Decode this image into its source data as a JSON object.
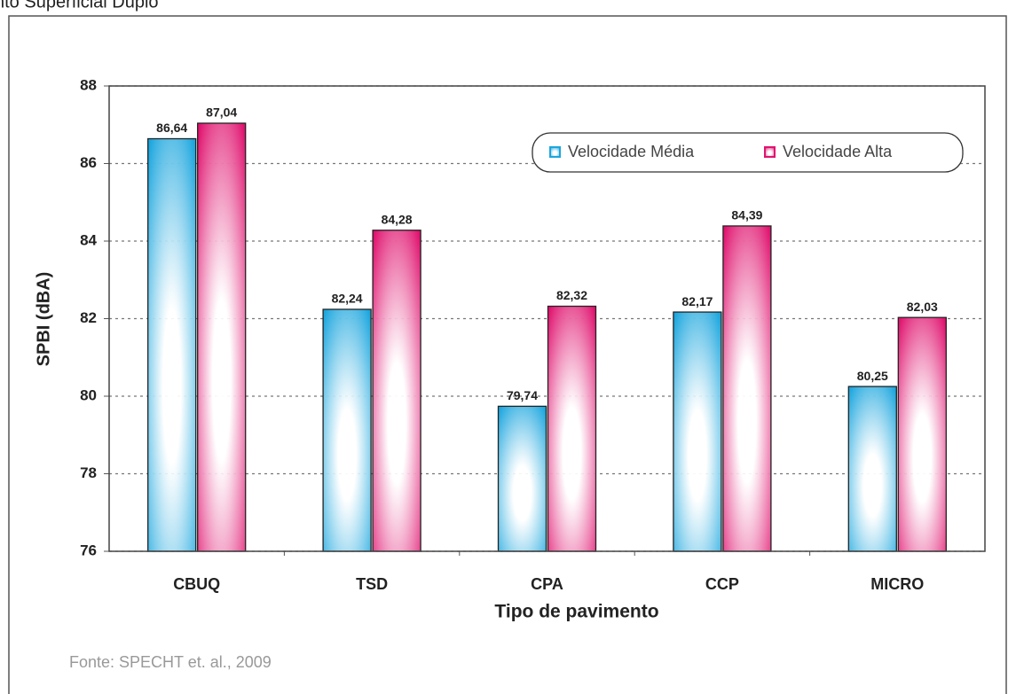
{
  "header": {
    "text": "nto Superficial Duplo"
  },
  "chart_data": {
    "type": "bar",
    "categories": [
      "CBUQ",
      "TSD",
      "CPA",
      "CCP",
      "MICRO"
    ],
    "series": [
      {
        "name": "Velocidade Média",
        "color": "#1ba6de",
        "values": [
          86.64,
          82.24,
          79.74,
          82.17,
          80.25
        ],
        "value_labels": [
          "86,64",
          "82,24",
          "79,74",
          "82,17",
          "80,25"
        ]
      },
      {
        "name": "Velocidade Alta",
        "color": "#e0136f",
        "values": [
          87.04,
          84.28,
          82.32,
          84.39,
          82.03
        ],
        "value_labels": [
          "87,04",
          "84,28",
          "82,32",
          "84,39",
          "82,03"
        ]
      }
    ],
    "ylabel": "SPBI (dBA)",
    "xlabel": "Tipo de pavimento",
    "ylim": [
      76,
      88
    ],
    "yticks": [
      76,
      78,
      80,
      82,
      84,
      86,
      88
    ],
    "grid": true,
    "legend": "upper right"
  },
  "source": {
    "text": "Fonte: SPECHT et. al., 2009"
  }
}
